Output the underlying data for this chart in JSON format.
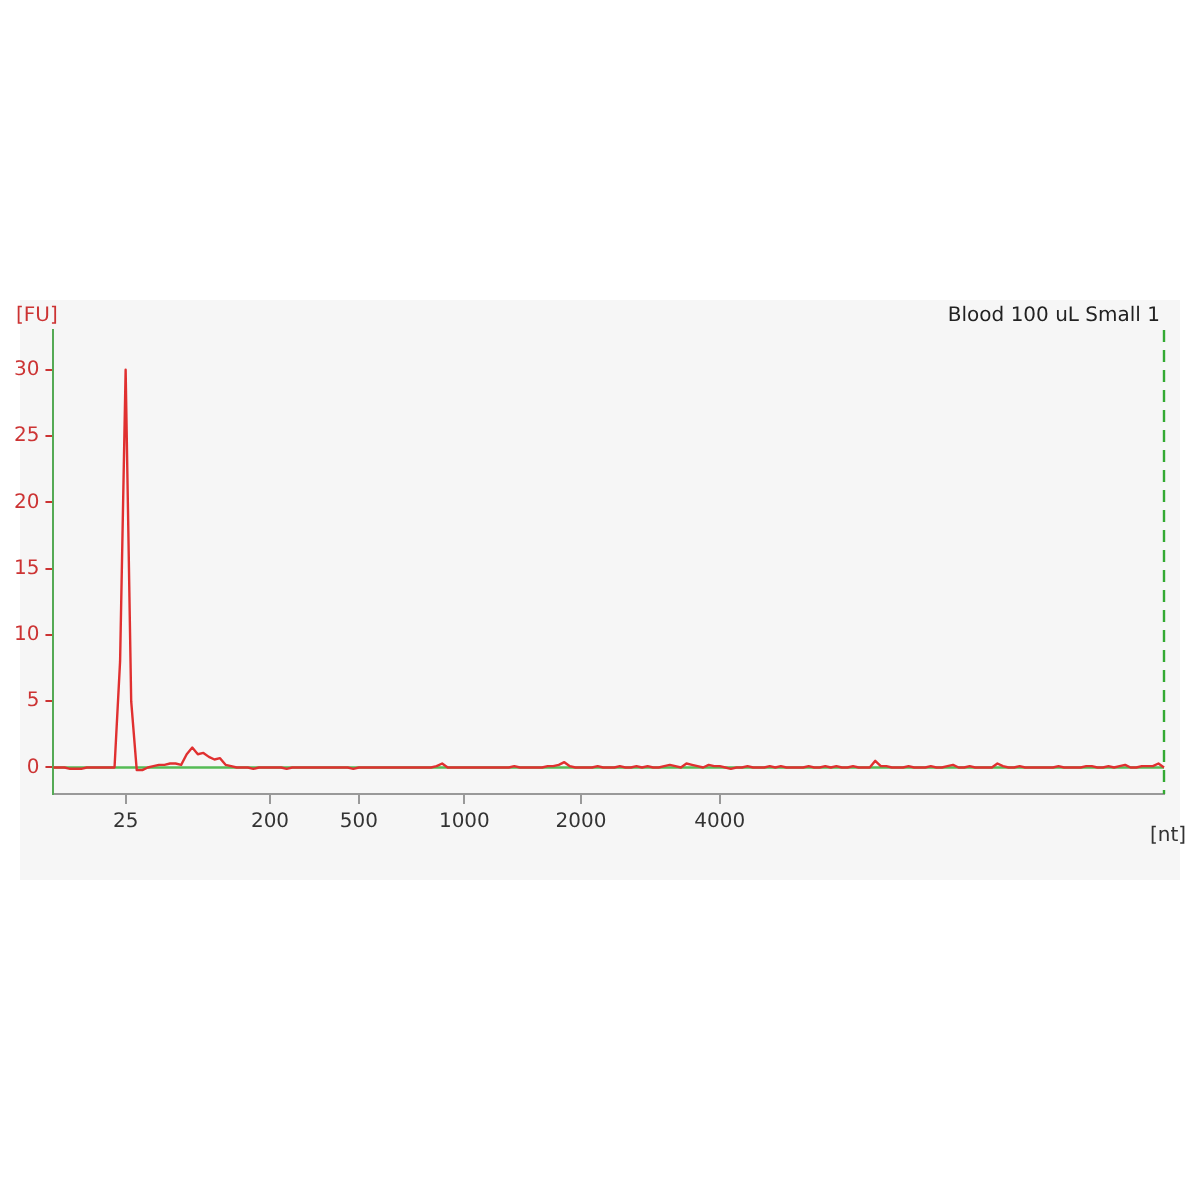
{
  "chart_data": {
    "type": "line",
    "title": "Blood 100 uL Small 1",
    "xlabel": "[nt]",
    "ylabel": "[FU]",
    "categories": [
      null,
      null,
      null,
      null,
      null,
      null,
      null,
      null,
      null,
      null,
      null,
      null,
      null,
      "25",
      null,
      null,
      null,
      null,
      null,
      null,
      null,
      null,
      null,
      null,
      null,
      null,
      null,
      null,
      null,
      null,
      null,
      null,
      null,
      null,
      null,
      null,
      null,
      null,
      null,
      "200",
      null,
      null,
      null,
      null,
      null,
      null,
      null,
      null,
      null,
      null,
      null,
      null,
      null,
      null,
      null,
      "500",
      null,
      null,
      null,
      null,
      null,
      null,
      null,
      null,
      null,
      null,
      null,
      null,
      null,
      null,
      null,
      null,
      null,
      null,
      "1000",
      null,
      null,
      null,
      null,
      null,
      null,
      null,
      null,
      null,
      null,
      null,
      null,
      null,
      null,
      null,
      null,
      null,
      null,
      null,
      null,
      "2000",
      null,
      null,
      null,
      null,
      null,
      null,
      null,
      null,
      null,
      null,
      null,
      null,
      null,
      null,
      null,
      null,
      null,
      null,
      null,
      null,
      null,
      null,
      null,
      null,
      "4000",
      null,
      null,
      null,
      null,
      null,
      null,
      null,
      null,
      null,
      null,
      null,
      null,
      null,
      null,
      null,
      null,
      null,
      null,
      null,
      null,
      null,
      null,
      null,
      null,
      null,
      null,
      null,
      null,
      null,
      null,
      null,
      null,
      null,
      null,
      null,
      null,
      null,
      null,
      null,
      null,
      null,
      null,
      null,
      null,
      null,
      null,
      null,
      null,
      null,
      null,
      null,
      null,
      null,
      null,
      null,
      null,
      null,
      null,
      null,
      null,
      null,
      null,
      null,
      null,
      null,
      null,
      null,
      null,
      null,
      null,
      null,
      null,
      null,
      null,
      null,
      null,
      null,
      null,
      null,
      null
    ],
    "series": [
      {
        "color": "#e03030",
        "values": [
          0,
          0,
          0,
          -0.1,
          -0.1,
          -0.1,
          0,
          0,
          0,
          0,
          0,
          0,
          8,
          30,
          5,
          -0.2,
          -0.2,
          0,
          0.1,
          0.2,
          0.2,
          0.3,
          0.3,
          0.2,
          1.0,
          1.5,
          1.0,
          1.1,
          0.8,
          0.6,
          0.7,
          0.2,
          0.1,
          0,
          0,
          0,
          -0.1,
          0,
          0,
          0,
          0,
          0,
          -0.1,
          0,
          0,
          0,
          0,
          0,
          0,
          0,
          0,
          0,
          0,
          0,
          -0.1,
          0,
          0,
          0,
          0,
          0,
          0,
          0,
          0,
          0,
          0,
          0,
          0,
          0,
          0,
          0.1,
          0.3,
          0,
          0,
          0,
          0,
          0,
          0,
          0,
          0,
          0,
          0,
          0,
          0,
          0.1,
          0,
          0,
          0,
          0,
          0,
          0.1,
          0.1,
          0.2,
          0.4,
          0.1,
          0,
          0,
          0,
          0,
          0.1,
          0,
          0,
          0,
          0.1,
          0,
          0,
          0.1,
          0,
          0.1,
          0,
          0,
          0.1,
          0.2,
          0.1,
          0,
          0.3,
          0.2,
          0.1,
          0,
          0.2,
          0.1,
          0.1,
          0,
          -0.1,
          0,
          0,
          0.1,
          0,
          0,
          0,
          0.1,
          0,
          0.1,
          0,
          0,
          0,
          0,
          0.1,
          0,
          0,
          0.1,
          0,
          0.1,
          0,
          0,
          0.1,
          0,
          0,
          0,
          0.5,
          0.1,
          0.1,
          0,
          0,
          0,
          0.1,
          0,
          0,
          0,
          0.1,
          0,
          0,
          0.1,
          0.2,
          0,
          0,
          0.1,
          0,
          0,
          0,
          0,
          0.3,
          0.1,
          0,
          0,
          0.1,
          0,
          0,
          0,
          0,
          0,
          0,
          0.1,
          0,
          0,
          0,
          0,
          0.1,
          0.1,
          0,
          0,
          0.1,
          0,
          0.1,
          0.2,
          0,
          0,
          0.1,
          0.1,
          0.1,
          0.3,
          0
        ]
      }
    ],
    "ylim": [
      -2,
      33
    ],
    "yticks": [
      0,
      5,
      10,
      15,
      20,
      25,
      30
    ],
    "ref_lines": [
      {
        "axis": "y",
        "value": 0,
        "color": "#55bb55",
        "line_style": "solid"
      }
    ],
    "grid": false,
    "marker": "none",
    "line_style": "solid"
  }
}
